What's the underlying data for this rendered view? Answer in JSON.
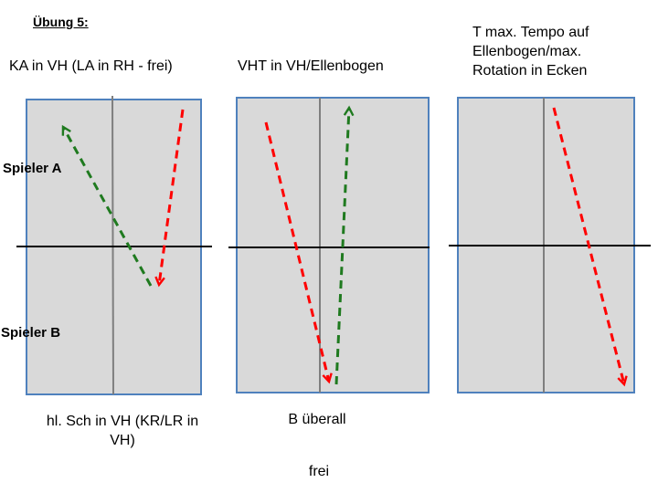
{
  "title": "Übung 5:",
  "columns": [
    {
      "heading": "KA in VH (LA in RH - frei)",
      "caption_lines": [
        "hl. Sch in VH (KR/LR in",
        "VH)"
      ],
      "arrows": [
        {
          "color": "red",
          "direction": "down"
        },
        {
          "color": "green",
          "direction": "up"
        }
      ]
    },
    {
      "heading": "VHT in VH/Ellenbogen",
      "caption_lines": [
        "B überall"
      ],
      "arrows": [
        {
          "color": "red",
          "direction": "down"
        },
        {
          "color": "green",
          "direction": "up"
        }
      ]
    },
    {
      "heading_lines": [
        "T max. Tempo auf",
        "Ellenbogen/max.",
        "Rotation in Ecken"
      ],
      "arrows": [
        {
          "color": "red",
          "direction": "down"
        }
      ]
    }
  ],
  "player_labels": {
    "a": "Spieler A",
    "b": "Spieler B"
  },
  "footer": "frei",
  "colors": {
    "table_fill": "#d9d9d9",
    "table_border": "#4f81bd",
    "center_line": "#7f7f7f",
    "net": "#000000",
    "red": "#ff0000",
    "green": "#1f7a1f"
  }
}
